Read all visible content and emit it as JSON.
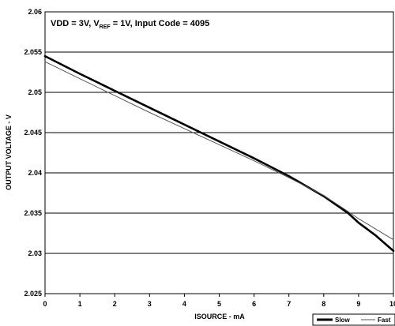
{
  "chart_data": {
    "type": "line",
    "title": "",
    "annotation": {
      "part1": "VDD = 3V, V",
      "sub": "REF",
      "part2": " = 1V, Input Code = 4095"
    },
    "xlabel": "ISOURCE - mA",
    "ylabel": "OUTPUT VOLTAGE - V",
    "xlim": [
      0,
      10
    ],
    "ylim": [
      2.025,
      2.06
    ],
    "x_ticks": [
      "0",
      "1",
      "2",
      "3",
      "4",
      "5",
      "6",
      "7",
      "8",
      "9",
      "10"
    ],
    "y_ticks": [
      "2.025",
      "2.03",
      "2.035",
      "2.04",
      "2.045",
      "2.05",
      "2.055",
      "2.06"
    ],
    "grid": "horizontal",
    "legend_position": "bottom-right",
    "series": [
      {
        "name": "Slow",
        "color": "#000000",
        "x": [
          0,
          1,
          2,
          3,
          4,
          5,
          6,
          7,
          8,
          8.7,
          9,
          9.5,
          10
        ],
        "y": [
          2.0545,
          2.0523,
          2.0502,
          2.0481,
          2.046,
          2.0439,
          2.0418,
          2.0396,
          2.0371,
          2.035,
          2.0338,
          2.0322,
          2.0303
        ]
      },
      {
        "name": "Fast",
        "color": "#555555",
        "x": [
          0,
          1,
          2,
          3,
          4,
          5,
          6,
          7,
          8,
          8.7,
          9,
          10
        ],
        "y": [
          2.0538,
          2.0517,
          2.0496,
          2.0475,
          2.0455,
          2.0435,
          2.0415,
          2.0394,
          2.0372,
          2.0352,
          2.0343,
          2.0317
        ]
      }
    ]
  }
}
